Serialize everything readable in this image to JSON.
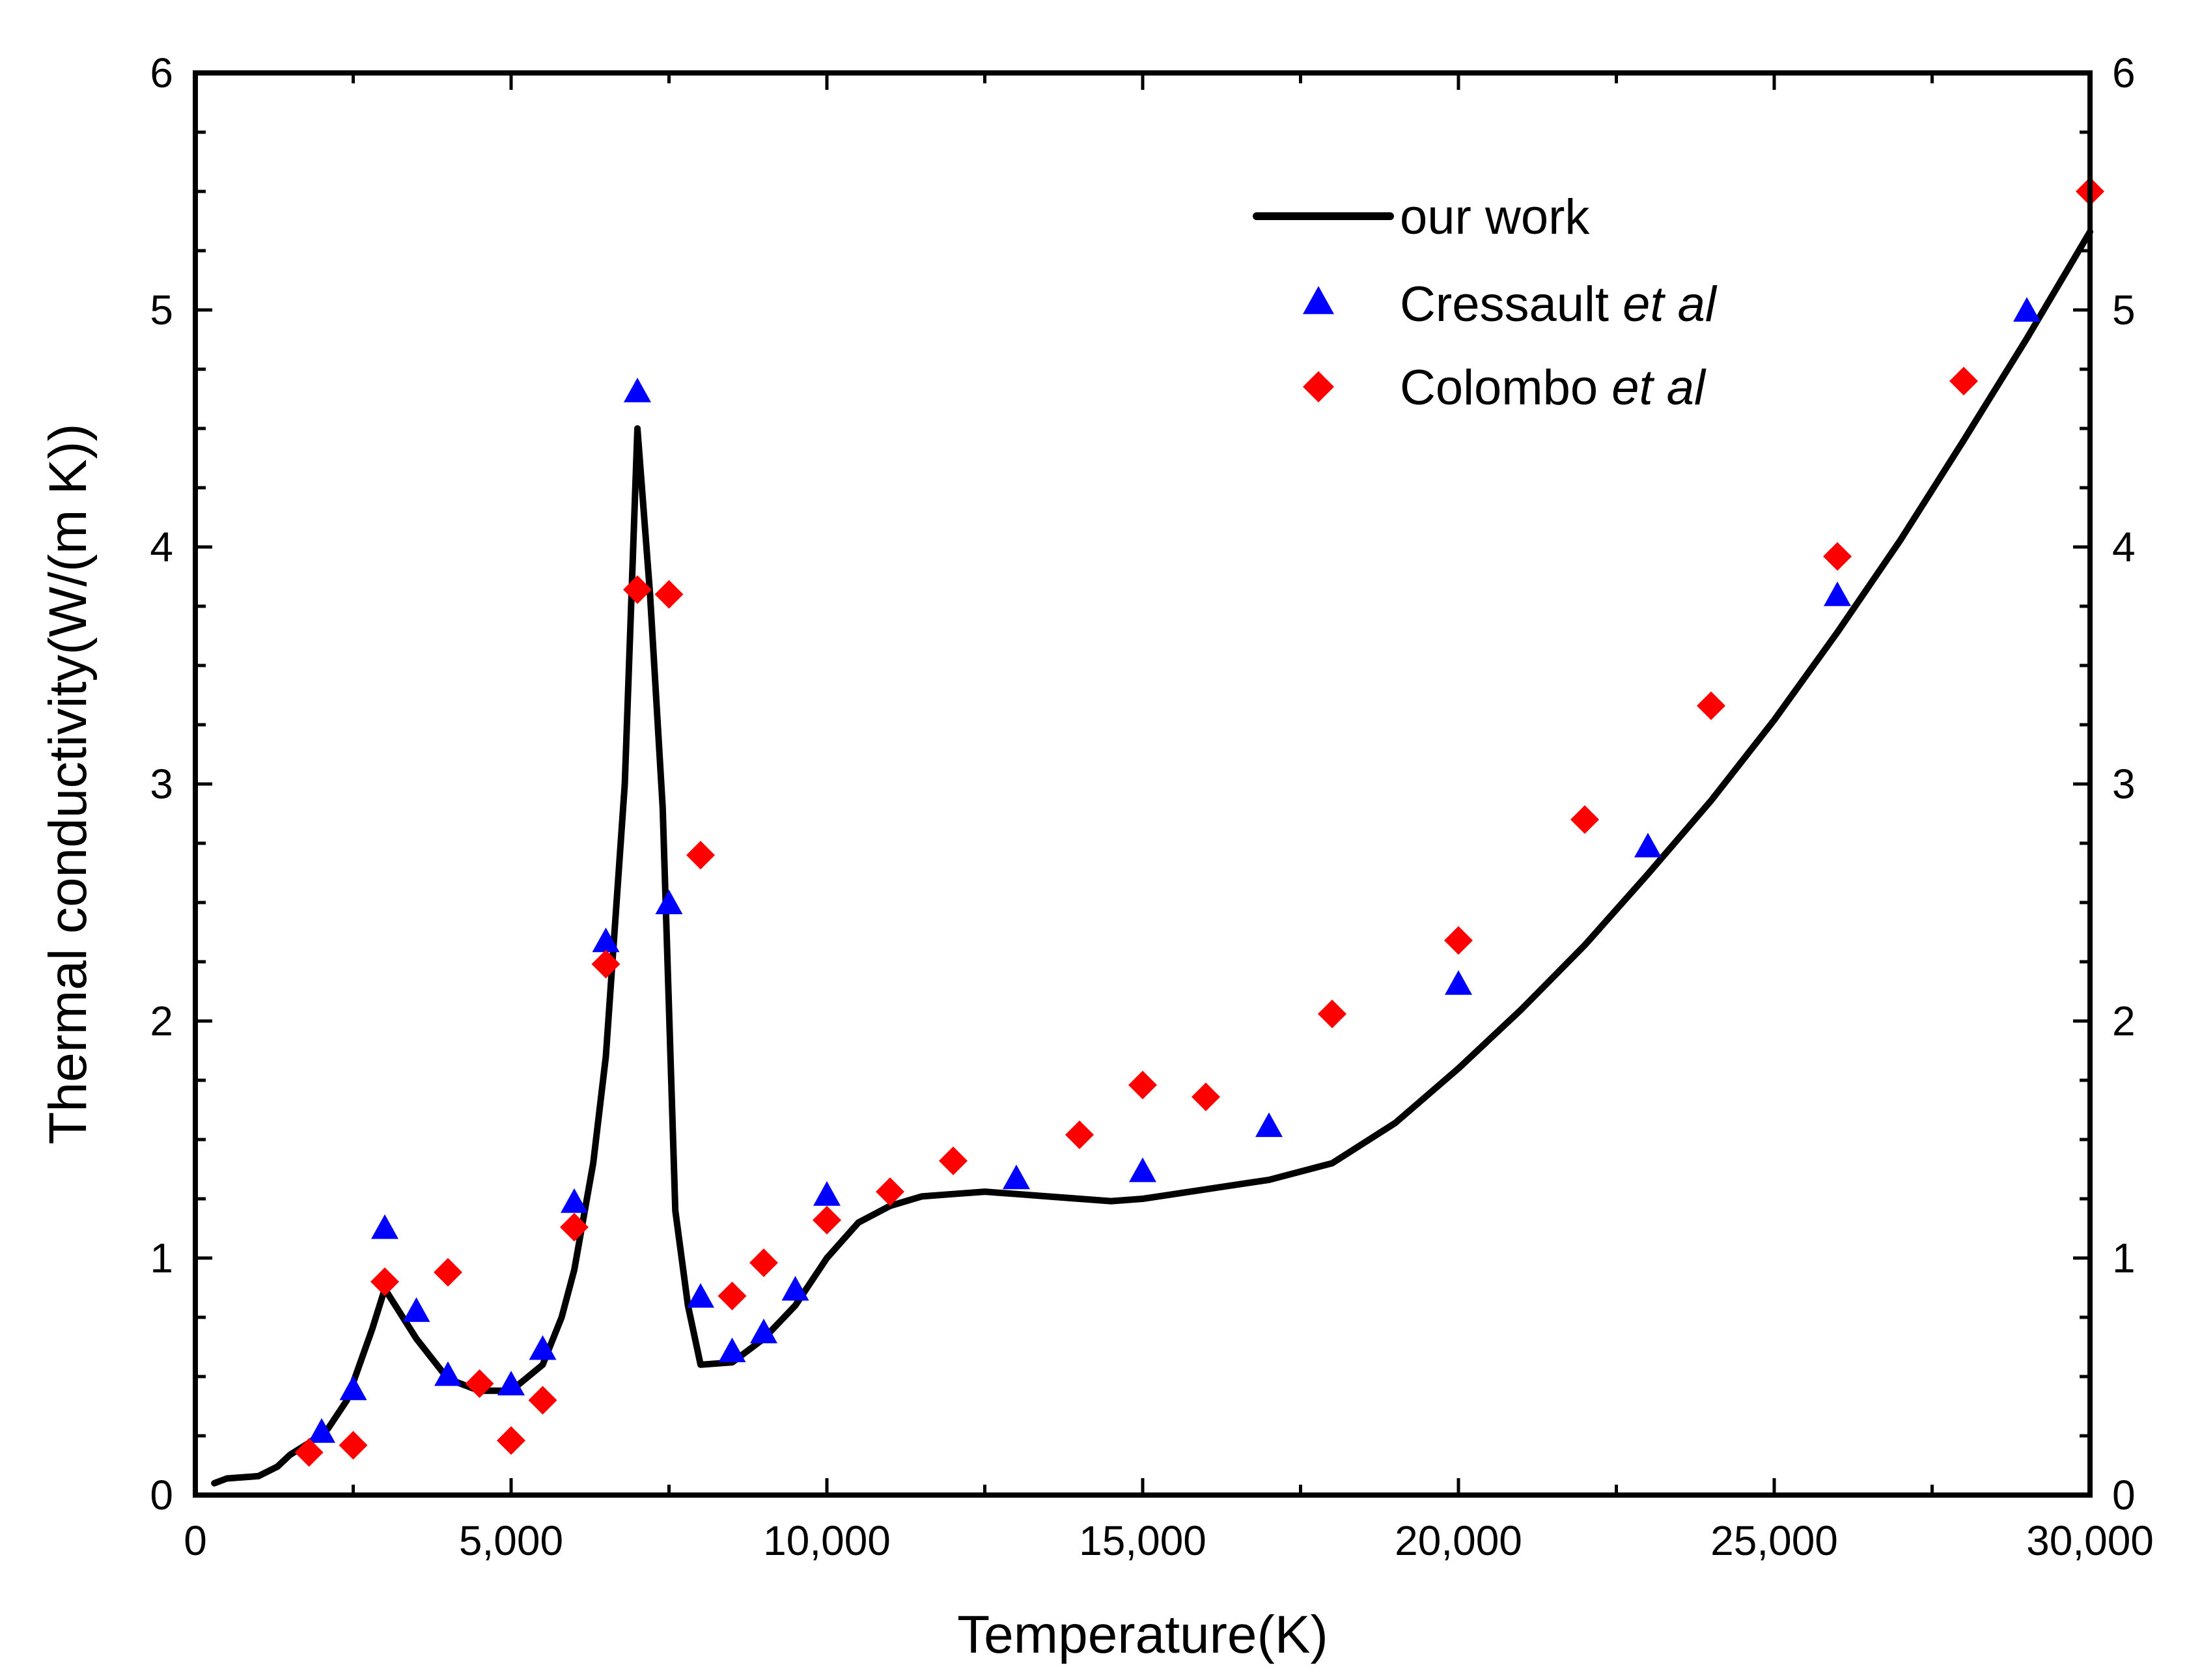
{
  "chart_data": {
    "type": "line+scatter",
    "title": "",
    "xlabel": "Temperature(K)",
    "ylabel": "Thermal conductivity(W/(m K))",
    "xlim": [
      0,
      30000
    ],
    "ylim": [
      0,
      6
    ],
    "x_ticks": [
      0,
      5000,
      10000,
      15000,
      20000,
      25000,
      30000
    ],
    "x_tick_labels": [
      "0",
      "5,000",
      "10,000",
      "15,000",
      "20,000",
      "25,000",
      "30,000"
    ],
    "y_ticks": [
      0,
      1,
      2,
      3,
      4,
      5,
      6
    ],
    "y_tick_labels": [
      "0",
      "1",
      "2",
      "3",
      "4",
      "5",
      "6"
    ],
    "grid": false,
    "legend_position": "top-right",
    "series": [
      {
        "name": "our work",
        "label_prefix": "our work",
        "label_italic": "",
        "style": "line",
        "color": "#000000",
        "x": [
          300,
          500,
          1000,
          1300,
          1500,
          1800,
          2100,
          2400,
          2600,
          2800,
          3000,
          3500,
          4000,
          4500,
          5000,
          5500,
          5800,
          6000,
          6300,
          6500,
          6800,
          7000,
          7200,
          7400,
          7600,
          7800,
          8000,
          8500,
          9000,
          9500,
          10000,
          10500,
          11000,
          11500,
          12000,
          12500,
          13000,
          13500,
          14000,
          14500,
          15000,
          16000,
          17000,
          18000,
          19000,
          20000,
          21000,
          22000,
          23000,
          24000,
          25000,
          26000,
          27000,
          28000,
          29000,
          30000
        ],
        "y": [
          0.05,
          0.07,
          0.08,
          0.12,
          0.17,
          0.22,
          0.28,
          0.4,
          0.55,
          0.7,
          0.87,
          0.66,
          0.49,
          0.44,
          0.44,
          0.55,
          0.75,
          0.95,
          1.4,
          1.85,
          3.0,
          4.5,
          3.8,
          2.9,
          1.2,
          0.8,
          0.55,
          0.56,
          0.66,
          0.8,
          1.0,
          1.15,
          1.22,
          1.26,
          1.27,
          1.28,
          1.27,
          1.26,
          1.25,
          1.24,
          1.25,
          1.29,
          1.33,
          1.4,
          1.57,
          1.8,
          2.05,
          2.32,
          2.62,
          2.93,
          3.27,
          3.64,
          4.03,
          4.45,
          4.88,
          5.33
        ]
      },
      {
        "name": "Cressault et al",
        "label_prefix": "Cressault ",
        "label_italic": "et al",
        "style": "triangle",
        "color": "#0000ff",
        "x": [
          2000,
          2500,
          3000,
          3500,
          4000,
          5000,
          5500,
          6000,
          6500,
          7000,
          7500,
          8000,
          8500,
          9000,
          9500,
          10000,
          13000,
          15000,
          17000,
          20000,
          23000,
          26000,
          29000
        ],
        "y": [
          0.26,
          0.44,
          1.12,
          0.77,
          0.5,
          0.46,
          0.61,
          1.23,
          2.33,
          4.65,
          2.49,
          0.83,
          0.6,
          0.68,
          0.86,
          1.26,
          1.33,
          1.36,
          1.55,
          2.15,
          2.73,
          3.79,
          4.99
        ]
      },
      {
        "name": "Colombo et al",
        "label_prefix": "Colombo ",
        "label_italic": "et al",
        "style": "diamond",
        "color": "#ff0000",
        "x": [
          1800,
          2500,
          3000,
          4000,
          4500,
          5000,
          5500,
          6000,
          6500,
          7000,
          7500,
          8000,
          8500,
          9000,
          10000,
          11000,
          12000,
          14000,
          15000,
          16000,
          18000,
          20000,
          22000,
          24000,
          26000,
          28000,
          30000
        ],
        "y": [
          0.18,
          0.21,
          0.9,
          0.94,
          0.47,
          0.23,
          0.4,
          1.13,
          2.24,
          3.82,
          3.8,
          2.7,
          0.84,
          0.98,
          1.16,
          1.28,
          1.41,
          1.52,
          1.73,
          1.68,
          2.03,
          2.34,
          2.85,
          3.33,
          3.96,
          4.7,
          5.5
        ]
      }
    ]
  }
}
